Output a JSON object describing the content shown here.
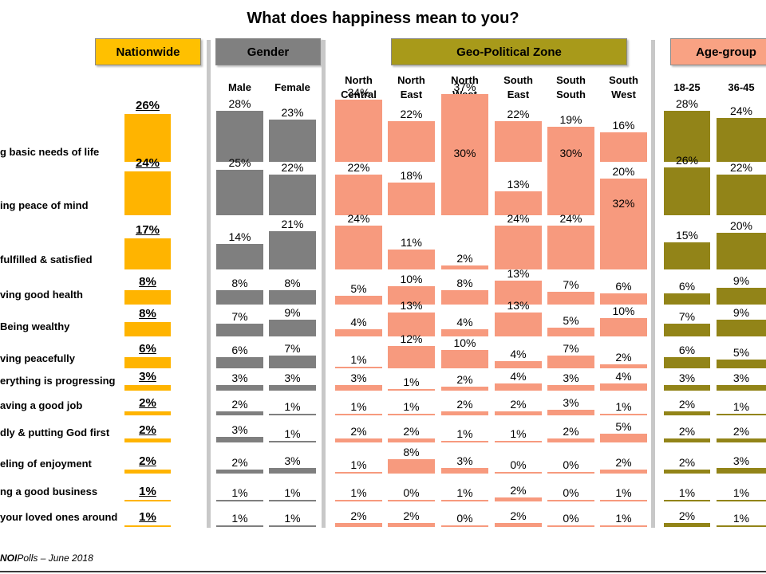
{
  "title": "What does happiness mean to you?",
  "footer": {
    "brand": "NOI",
    "text": "Polls – June 2018"
  },
  "colors": {
    "nationwide": "#FFB400",
    "gender": "#7F7F7F",
    "zone": "#F79A7E",
    "age": "#928418",
    "nationwide_hdr": "#FFC000",
    "gender_hdr": "#808080",
    "zone_hdr": "#A89A1A",
    "age_hdr": "#F9A283"
  },
  "groups": [
    {
      "key": "nationwide",
      "label": "Nationwide"
    },
    {
      "key": "gender",
      "label": "Gender"
    },
    {
      "key": "zone",
      "label": "Geo-Political Zone"
    },
    {
      "key": "age",
      "label": "Age-group"
    }
  ],
  "chart_data": {
    "type": "bar",
    "title": "What does happiness mean to you?",
    "categories": [
      "g basic needs of life",
      "ing peace of mind",
      "fulfilled & satisfied",
      "ving good health",
      "Being wealthy",
      "ving peacefully",
      "erything is progressing",
      "aving a good job",
      "dly & putting God first",
      "eling of enjoyment",
      "ng a good business",
      "your loved ones around"
    ],
    "series": [
      {
        "name": "Nationwide",
        "group": "nationwide",
        "values": [
          26,
          24,
          17,
          8,
          8,
          6,
          3,
          2,
          2,
          2,
          1,
          1
        ]
      },
      {
        "name": "Male",
        "group": "gender",
        "values": [
          28,
          25,
          14,
          8,
          7,
          6,
          3,
          2,
          3,
          2,
          1,
          1
        ]
      },
      {
        "name": "Female",
        "group": "gender",
        "values": [
          23,
          22,
          21,
          8,
          9,
          7,
          3,
          1,
          1,
          3,
          1,
          1
        ]
      },
      {
        "name": "North Central",
        "group": "zone",
        "values": [
          34,
          22,
          24,
          5,
          4,
          1,
          3,
          1,
          2,
          1,
          1,
          2
        ]
      },
      {
        "name": "North East",
        "group": "zone",
        "values": [
          22,
          18,
          11,
          10,
          13,
          12,
          1,
          1,
          2,
          8,
          0,
          2
        ]
      },
      {
        "name": "North West",
        "group": "zone",
        "values": [
          37,
          30,
          2,
          8,
          4,
          10,
          2,
          2,
          1,
          3,
          1,
          0
        ]
      },
      {
        "name": "South East",
        "group": "zone",
        "values": [
          22,
          13,
          24,
          13,
          13,
          4,
          4,
          2,
          1,
          0,
          2,
          2
        ]
      },
      {
        "name": "South South",
        "group": "zone",
        "values": [
          19,
          30,
          24,
          7,
          5,
          7,
          3,
          3,
          2,
          0,
          0,
          0
        ]
      },
      {
        "name": "South West",
        "group": "zone",
        "values": [
          16,
          20,
          32,
          6,
          10,
          2,
          4,
          1,
          5,
          2,
          1,
          1
        ]
      },
      {
        "name": "18-25",
        "group": "age",
        "values": [
          28,
          26,
          15,
          6,
          7,
          6,
          3,
          2,
          2,
          2,
          1,
          2
        ]
      },
      {
        "name": "36-45",
        "group": "age",
        "values": [
          24,
          22,
          20,
          9,
          9,
          5,
          3,
          1,
          2,
          3,
          1,
          1
        ]
      }
    ],
    "unit": "%",
    "ylim": [
      0,
      40
    ]
  }
}
